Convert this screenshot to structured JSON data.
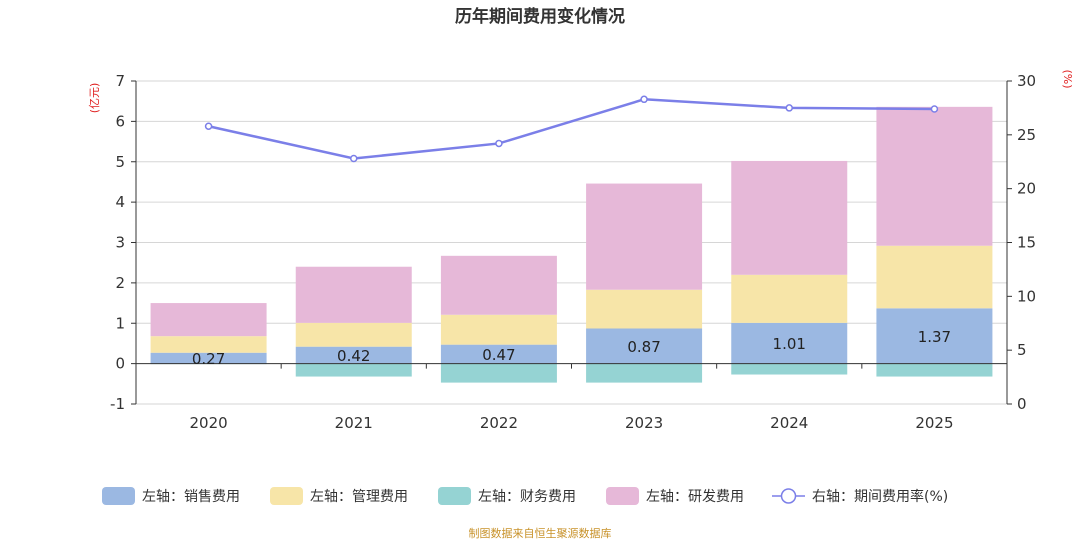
{
  "chart_data": {
    "type": "bar",
    "title": "历年期间费用变化情况",
    "categories": [
      "2020",
      "2021",
      "2022",
      "2023",
      "2024",
      "2025"
    ],
    "left_axis": {
      "unit_label": "(亿元)",
      "ylim": [
        -1,
        7
      ],
      "ticks": [
        "7",
        "6",
        "5",
        "4",
        "3",
        "2",
        "1",
        "0",
        "-1"
      ]
    },
    "right_axis": {
      "unit_label": "(%)",
      "ylim": [
        0,
        30
      ],
      "ticks": [
        "30",
        "25",
        "20",
        "15",
        "10",
        "5",
        "0"
      ]
    },
    "series": [
      {
        "name": "左轴：销售费用",
        "type": "bar",
        "axis": "left",
        "color": "#9bb8e2",
        "values": [
          0.27,
          0.42,
          0.47,
          0.87,
          1.01,
          1.37
        ],
        "show_labels": true
      },
      {
        "name": "左轴：管理费用",
        "type": "bar",
        "axis": "left",
        "color": "#f7e5a8",
        "values": [
          0.41,
          0.59,
          0.74,
          0.96,
          1.19,
          1.55
        ]
      },
      {
        "name": "左轴：财务费用",
        "type": "bar",
        "axis": "left",
        "color": "#95d3d3",
        "values": [
          -0.01,
          -0.32,
          -0.47,
          -0.47,
          -0.27,
          -0.32
        ]
      },
      {
        "name": "左轴：研发费用",
        "type": "bar",
        "axis": "left",
        "color": "#e6b8d8",
        "values": [
          0.82,
          1.39,
          1.46,
          2.63,
          2.82,
          3.44
        ]
      },
      {
        "name": "右轴：期间费用率(%)",
        "type": "line",
        "axis": "right",
        "color": "#7b7fe8",
        "values": [
          25.8,
          22.8,
          24.2,
          28.3,
          27.5,
          27.4
        ]
      }
    ],
    "grid": true,
    "legend_position": "bottom"
  },
  "source": "制图数据来自恒生聚源数据库"
}
